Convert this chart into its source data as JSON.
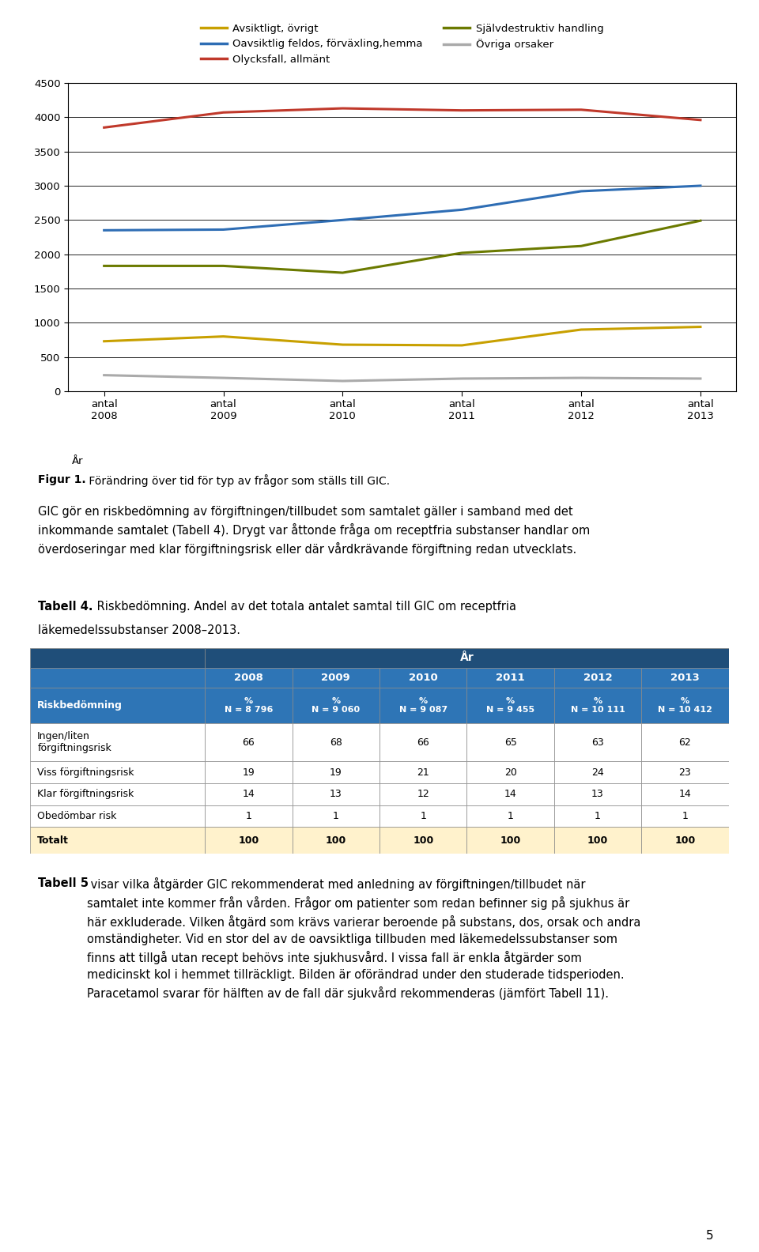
{
  "years": [
    2008,
    2009,
    2010,
    2011,
    2012,
    2013
  ],
  "series": {
    "Avsiktligt, övrigt": {
      "values": [
        730,
        800,
        680,
        670,
        900,
        940
      ],
      "color": "#C8A000",
      "linewidth": 2.2
    },
    "Olycksfall, allmänt": {
      "values": [
        3850,
        4070,
        4130,
        4100,
        4110,
        3960
      ],
      "color": "#C0392B",
      "linewidth": 2.2
    },
    "Övriga orsaker": {
      "values": [
        235,
        195,
        150,
        185,
        195,
        185
      ],
      "color": "#AAAAAA",
      "linewidth": 2.2
    },
    "Oavsiktlig feldos, förväxling,hemma": {
      "values": [
        2350,
        2360,
        2500,
        2650,
        2920,
        3000
      ],
      "color": "#2E6DB4",
      "linewidth": 2.2
    },
    "Självdestruktiv handling": {
      "values": [
        1830,
        1830,
        1730,
        2020,
        2120,
        2490
      ],
      "color": "#6B7A00",
      "linewidth": 2.2
    }
  },
  "legend_order": [
    "Avsiktligt, övrigt",
    "Oavsiktlig feldos, förväxling,hemma",
    "Olycksfall, allmänt",
    "Självdestruktiv handling",
    "Övriga orsaker"
  ],
  "ylim": [
    0,
    4500
  ],
  "yticks": [
    0,
    500,
    1000,
    1500,
    2000,
    2500,
    3000,
    3500,
    4000,
    4500
  ],
  "figur_bold": "Figur 1.",
  "figur_rest": " Förändring över tid för typ av frågor som ställs till GIC.",
  "paragraph1": "GIC gör en riskbedömning av förgiftningen/tillbudet som samtalet gäller i samband med det\ninkommande samtalet (Tabell 4). Drygt var åttonde fråga om receptfria substanser handlar om\növerdoseringar med klar förgiftningsrisk eller där vårdkrävande förgiftning redan utvecklats.",
  "tabell_bold": "Tabell 4.",
  "tabell_rest": " Riskbedömning. Andel av det totala antalet samtal till GIC om receptfria",
  "tabell_line2": "läkemedelssubstanser 2008–2013.",
  "table_header_bg": "#1F4E79",
  "table_header_fg": "#FFFFFF",
  "table_subheader_bg": "#2E75B6",
  "table_subheader_fg": "#FFFFFF",
  "table_white": "#FFFFFF",
  "table_total_bg": "#FFF2CC",
  "table_cols": [
    "2008",
    "2009",
    "2010",
    "2011",
    "2012",
    "2013"
  ],
  "table_col_sub": [
    "%\nN = 8 796",
    "%\nN = 9 060",
    "%\nN = 9 087",
    "%\nN = 9 455",
    "%\nN = 10 111",
    "%\nN = 10 412"
  ],
  "table_rows": [
    [
      "Ingen/liten\nförgiftningsrisk",
      "66",
      "68",
      "66",
      "65",
      "63",
      "62"
    ],
    [
      "Viss förgiftningsrisk",
      "19",
      "19",
      "21",
      "20",
      "24",
      "23"
    ],
    [
      "Klar förgiftningsrisk",
      "14",
      "13",
      "12",
      "14",
      "13",
      "14"
    ],
    [
      "Obedömbar risk",
      "1",
      "1",
      "1",
      "1",
      "1",
      "1"
    ],
    [
      "Totalt",
      "100",
      "100",
      "100",
      "100",
      "100",
      "100"
    ]
  ],
  "para2_bold": "Tabell 5",
  "para2_rest": " visar vilka åtgärder GIC rekommenderat med anledning av förgiftningen/tillbudet när\nsamtalet inte kommer från vården. Frågor om patienter som redan befinner sig på sjukhus är\nhär exkluderade. Vilken åtgärd som krävs varierar beroende på substans, dos, orsak och andra\nomständigheter. Vid en stor del av de oavsiktliga tillbuden med läkemedelssubstanser som\nfinns att tillgå utan recept behövs inte sjukhusvård. I vissa fall är enkla åtgärder som\nmedicinskt kol i hemmet tillräckligt. Bilden är oförändrad under den studerade tidsperioden.\nParacetamol svarar för hälften av de fall där sjukvård rekommenderas (jämfört Tabell 11).",
  "page_number": "5",
  "bg_color": "#FFFFFF",
  "text_color": "#000000"
}
